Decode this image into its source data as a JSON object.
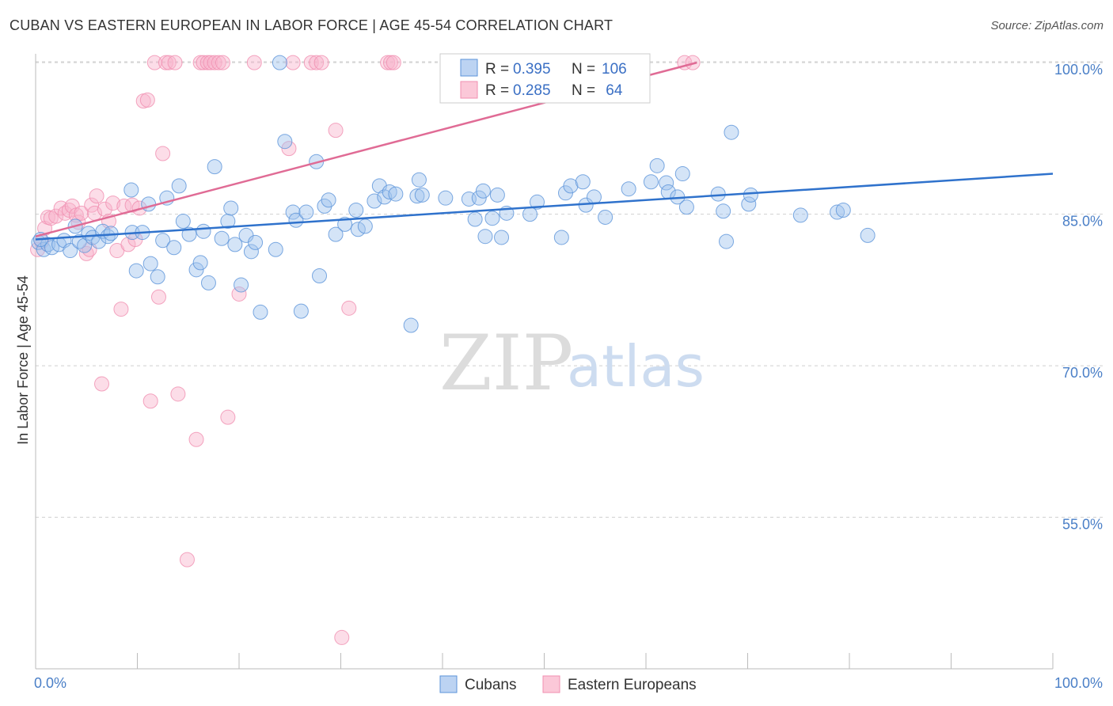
{
  "title": "CUBAN VS EASTERN EUROPEAN IN LABOR FORCE | AGE 45-54 CORRELATION CHART",
  "source": "Source: ZipAtlas.com",
  "watermark": {
    "zip": "ZIP",
    "atlas": "atlas"
  },
  "colors": {
    "cubans": "#5b93d9",
    "eastern_europeans": "#f08fb0",
    "cubans_line": "#2f72cc",
    "ee_line": "#e06b95",
    "grid": "#d0d0d0",
    "axis_text": "#4a7fc7"
  },
  "legend": {
    "rows": [
      {
        "r_label": "R = ",
        "r_value": "0.395",
        "n_label": "N = ",
        "n_value": "106"
      },
      {
        "r_label": "R = ",
        "r_value": "0.285",
        "n_label": "N = ",
        "n_value": " 64"
      }
    ]
  },
  "bottom_legend": [
    "Cubans",
    "Eastern Europeans"
  ],
  "chart_data": {
    "type": "scatter",
    "title": "CUBAN VS EASTERN EUROPEAN IN LABOR FORCE | AGE 45-54 CORRELATION CHART",
    "xlabel": "",
    "ylabel": "In Labor Force | Age 45-54",
    "xlim": [
      0,
      100
    ],
    "ylim": [
      40,
      101.5
    ],
    "x_tick_labels": [
      "0.0%",
      "100.0%"
    ],
    "y_ticks": [
      55,
      70,
      85,
      100
    ],
    "y_tick_labels": [
      "55.0%",
      "70.0%",
      "85.0%",
      "100.0%"
    ],
    "grid": "horizontal dashed",
    "legend_position": "top-center",
    "series": [
      {
        "name": "Cubans",
        "R": 0.395,
        "N": 106,
        "trend": {
          "x": [
            0,
            100
          ],
          "y": [
            82.5,
            89.0
          ]
        },
        "points": [
          [
            0.3,
            82.2
          ],
          [
            0.8,
            81.5
          ],
          [
            1.2,
            82
          ],
          [
            1.6,
            81.7
          ],
          [
            2.3,
            82
          ],
          [
            2.8,
            82.4
          ],
          [
            3.4,
            81.4
          ],
          [
            3.9,
            83.8
          ],
          [
            4.3,
            82.3
          ],
          [
            4.8,
            81.9
          ],
          [
            5.2,
            83.1
          ],
          [
            5.6,
            82.7
          ],
          [
            6.2,
            82.3
          ],
          [
            6.6,
            83.3
          ],
          [
            7.1,
            82.8
          ],
          [
            7.4,
            83.1
          ],
          [
            9.5,
            83.2
          ],
          [
            9.4,
            87.4
          ],
          [
            9.9,
            79.4
          ],
          [
            10.5,
            83.2
          ],
          [
            11.1,
            86.0
          ],
          [
            11.3,
            80.1
          ],
          [
            12.0,
            78.8
          ],
          [
            12.5,
            82.4
          ],
          [
            12.9,
            86.6
          ],
          [
            13.6,
            81.7
          ],
          [
            14.1,
            87.8
          ],
          [
            14.5,
            84.3
          ],
          [
            15.1,
            83.0
          ],
          [
            15.8,
            79.5
          ],
          [
            16.2,
            80.2
          ],
          [
            16.5,
            83.3
          ],
          [
            17.0,
            78.2
          ],
          [
            17.6,
            89.7
          ],
          [
            18.3,
            82.6
          ],
          [
            18.9,
            84.3
          ],
          [
            19.2,
            85.6
          ],
          [
            19.6,
            82.0
          ],
          [
            20.2,
            78.0
          ],
          [
            20.7,
            82.9
          ],
          [
            21.2,
            81.3
          ],
          [
            21.6,
            82.2
          ],
          [
            22.1,
            75.3
          ],
          [
            23.6,
            81.5
          ],
          [
            24.5,
            92.2
          ],
          [
            25.3,
            85.2
          ],
          [
            25.6,
            84.4
          ],
          [
            26.1,
            75.4
          ],
          [
            26.6,
            85.2
          ],
          [
            27.6,
            90.2
          ],
          [
            27.9,
            78.9
          ],
          [
            28.4,
            85.8
          ],
          [
            28.8,
            86.4
          ],
          [
            29.5,
            83.0
          ],
          [
            30.4,
            84.0
          ],
          [
            31.5,
            85.4
          ],
          [
            31.7,
            83.5
          ],
          [
            32.4,
            83.8
          ],
          [
            33.3,
            86.3
          ],
          [
            33.8,
            87.8
          ],
          [
            34.3,
            86.7
          ],
          [
            34.8,
            87.2
          ],
          [
            35.4,
            87.0
          ],
          [
            36.9,
            74.0
          ],
          [
            37.5,
            86.8
          ],
          [
            37.7,
            88.4
          ],
          [
            38.0,
            86.9
          ],
          [
            40.3,
            86.6
          ],
          [
            42.6,
            86.5
          ],
          [
            43.2,
            84.5
          ],
          [
            43.6,
            86.6
          ],
          [
            44.0,
            87.3
          ],
          [
            44.2,
            82.8
          ],
          [
            44.9,
            84.6
          ],
          [
            45.4,
            86.9
          ],
          [
            45.8,
            82.7
          ],
          [
            46.3,
            85.1
          ],
          [
            48.6,
            85.0
          ],
          [
            49.3,
            86.2
          ],
          [
            51.7,
            82.7
          ],
          [
            52.1,
            87.1
          ],
          [
            52.6,
            87.8
          ],
          [
            53.8,
            88.2
          ],
          [
            54.1,
            85.9
          ],
          [
            54.9,
            86.7
          ],
          [
            56.0,
            84.7
          ],
          [
            58.3,
            87.5
          ],
          [
            60.5,
            88.2
          ],
          [
            61.1,
            89.8
          ],
          [
            62.0,
            88.1
          ],
          [
            62.2,
            87.2
          ],
          [
            63.1,
            86.7
          ],
          [
            63.6,
            89.0
          ],
          [
            64.0,
            85.7
          ],
          [
            67.1,
            87.0
          ],
          [
            67.6,
            85.3
          ],
          [
            67.9,
            82.3
          ],
          [
            68.4,
            93.1
          ],
          [
            70.1,
            86.0
          ],
          [
            70.3,
            86.9
          ],
          [
            75.2,
            84.9
          ],
          [
            78.8,
            85.2
          ],
          [
            79.4,
            85.4
          ],
          [
            81.8,
            82.9
          ],
          [
            24.0,
            100.0
          ],
          [
            0.5,
            82.5
          ]
        ]
      },
      {
        "name": "Eastern Europeans",
        "R": 0.285,
        "N": 64,
        "trend": {
          "x": [
            0,
            65
          ],
          "y": [
            82.8,
            100.0
          ]
        },
        "points": [
          [
            0.2,
            81.5
          ],
          [
            0.6,
            82.3
          ],
          [
            0.9,
            83.6
          ],
          [
            1.2,
            84.7
          ],
          [
            1.5,
            84.6
          ],
          [
            2.0,
            84.8
          ],
          [
            2.5,
            85.6
          ],
          [
            2.9,
            85.1
          ],
          [
            3.3,
            85.4
          ],
          [
            3.6,
            85.8
          ],
          [
            4.0,
            84.9
          ],
          [
            4.2,
            84.2
          ],
          [
            4.5,
            85.1
          ],
          [
            5.0,
            81.1
          ],
          [
            5.3,
            81.5
          ],
          [
            5.5,
            85.9
          ],
          [
            5.8,
            85.1
          ],
          [
            6.0,
            86.8
          ],
          [
            6.5,
            68.2
          ],
          [
            6.8,
            85.5
          ],
          [
            7.2,
            84.3
          ],
          [
            7.6,
            86.1
          ],
          [
            8.0,
            81.4
          ],
          [
            8.4,
            75.6
          ],
          [
            8.7,
            85.8
          ],
          [
            9.1,
            82.0
          ],
          [
            9.5,
            85.9
          ],
          [
            9.8,
            82.5
          ],
          [
            10.2,
            85.6
          ],
          [
            10.6,
            96.2
          ],
          [
            11.0,
            96.3
          ],
          [
            11.3,
            66.5
          ],
          [
            11.7,
            100.0
          ],
          [
            12.1,
            76.8
          ],
          [
            12.5,
            91.0
          ],
          [
            12.8,
            100.0
          ],
          [
            13.1,
            100.0
          ],
          [
            13.7,
            100.0
          ],
          [
            14.0,
            67.2
          ],
          [
            14.9,
            50.8
          ],
          [
            15.8,
            62.7
          ],
          [
            16.2,
            100.0
          ],
          [
            16.5,
            100.0
          ],
          [
            16.9,
            100.0
          ],
          [
            17.2,
            100.0
          ],
          [
            17.6,
            100.0
          ],
          [
            18.0,
            100.0
          ],
          [
            18.4,
            100.0
          ],
          [
            18.9,
            64.9
          ],
          [
            20.0,
            77.1
          ],
          [
            21.5,
            100.0
          ],
          [
            24.9,
            91.5
          ],
          [
            25.3,
            100.0
          ],
          [
            27.1,
            100.0
          ],
          [
            27.6,
            100.0
          ],
          [
            28.1,
            100.0
          ],
          [
            29.5,
            93.3
          ],
          [
            30.1,
            43.1
          ],
          [
            30.8,
            75.7
          ],
          [
            34.6,
            100.0
          ],
          [
            34.9,
            100.0
          ],
          [
            35.2,
            100.0
          ],
          [
            63.8,
            100.0
          ],
          [
            64.6,
            100.0
          ]
        ]
      }
    ]
  }
}
